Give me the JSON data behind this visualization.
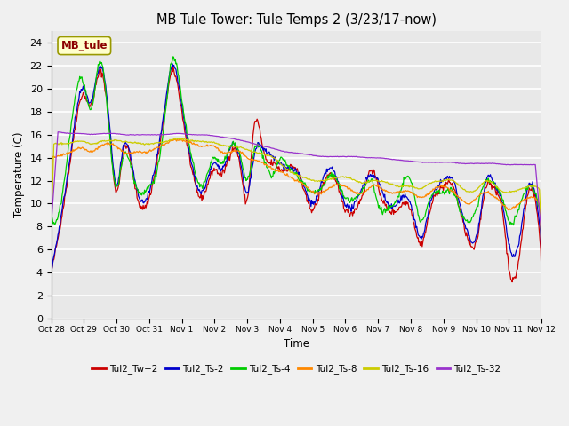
{
  "title": "MB Tule Tower: Tule Temps 2 (3/23/17-now)",
  "xlabel": "Time",
  "ylabel": "Temperature (C)",
  "ylim": [
    0,
    25
  ],
  "yticks": [
    0,
    2,
    4,
    6,
    8,
    10,
    12,
    14,
    16,
    18,
    20,
    22,
    24
  ],
  "plot_bg": "#e8e8e8",
  "fig_bg": "#f0f0f0",
  "series_colors": [
    "#cc0000",
    "#0000cc",
    "#00cc00",
    "#ff8800",
    "#cccc00",
    "#9933cc"
  ],
  "series_labels": [
    "Tul2_Tw+2",
    "Tul2_Ts-2",
    "Tul2_Ts-4",
    "Tul2_Ts-8",
    "Tul2_Ts-16",
    "Tul2_Ts-32"
  ],
  "x_tick_labels": [
    "Oct 28",
    "Oct 29",
    "Oct 30",
    "Oct 31",
    "Nov 1",
    "Nov 2",
    "Nov 3",
    "Nov 4",
    "Nov 5",
    "Nov 6",
    "Nov 7",
    "Nov 8",
    "Nov 9",
    "Nov 10",
    "Nov 11",
    "Nov 12"
  ],
  "annotation_label": "MB_tule"
}
